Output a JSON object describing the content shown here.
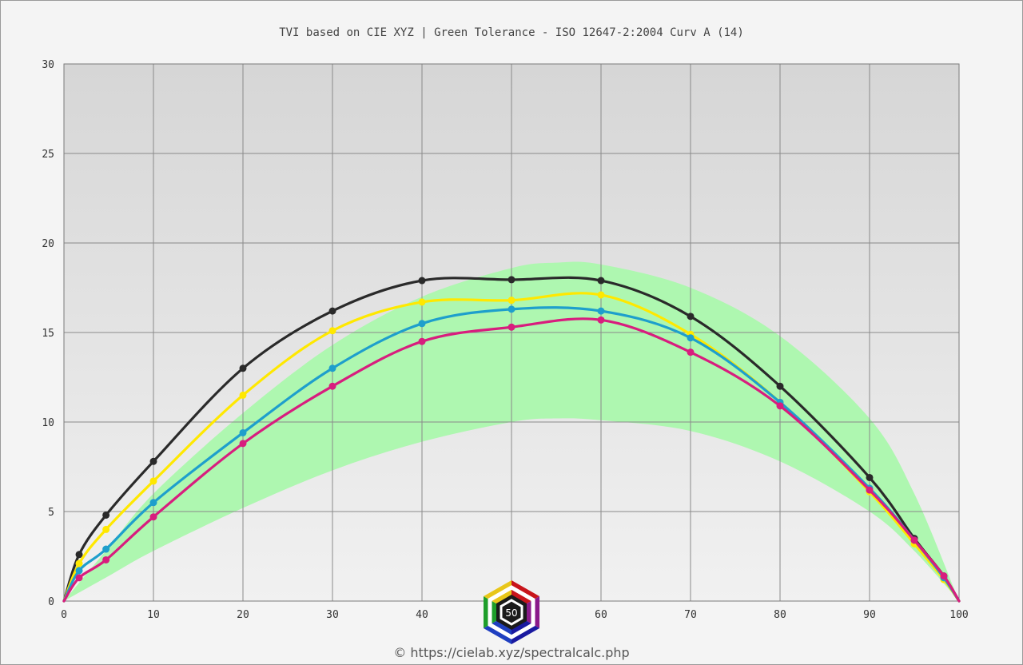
{
  "chart_data": {
    "type": "line",
    "title": "TVI based on CIE XYZ  |  Green Tolerance - ISO 12647-2:2004 Curv A (14)",
    "xlabel": "",
    "ylabel": "",
    "xlim": [
      0,
      100
    ],
    "ylim": [
      0,
      30
    ],
    "x_ticks": [
      0,
      10,
      20,
      30,
      40,
      50,
      60,
      70,
      80,
      90,
      100
    ],
    "y_ticks": [
      0,
      5,
      10,
      15,
      20,
      25,
      30
    ],
    "grid": true,
    "tolerance_band": {
      "x": [
        0,
        5,
        10,
        20,
        30,
        40,
        50,
        55,
        60,
        70,
        80,
        90,
        95,
        100
      ],
      "lower": [
        0,
        1.4,
        2.8,
        5.2,
        7.3,
        8.9,
        10.0,
        10.2,
        10.1,
        9.5,
        7.8,
        5.0,
        2.8,
        0
      ],
      "upper": [
        0,
        3.0,
        6.0,
        10.5,
        14.3,
        17.0,
        18.6,
        18.9,
        18.8,
        17.5,
        14.8,
        10.2,
        6.0,
        0
      ],
      "color": "#aef7b0"
    },
    "series": [
      {
        "color": "#2a2a2a",
        "x": [
          0,
          1.7,
          4.7,
          10,
          20,
          30,
          40,
          50,
          60,
          70,
          80,
          90,
          95,
          98.3,
          100
        ],
        "y": [
          0,
          2.6,
          4.8,
          7.8,
          13.0,
          16.2,
          17.9,
          17.95,
          17.9,
          15.9,
          12.0,
          6.9,
          3.5,
          1.4,
          0
        ]
      },
      {
        "color": "#ffe800",
        "x": [
          0,
          1.7,
          4.7,
          10,
          20,
          30,
          40,
          50,
          60,
          70,
          80,
          90,
          95,
          98.3,
          100
        ],
        "y": [
          0,
          2.1,
          4.0,
          6.7,
          11.5,
          15.1,
          16.7,
          16.8,
          17.1,
          14.9,
          11.1,
          6.1,
          3.2,
          1.2,
          0
        ]
      },
      {
        "color": "#1e9fcc",
        "x": [
          0,
          1.7,
          4.7,
          10,
          20,
          30,
          40,
          50,
          60,
          70,
          80,
          90,
          95,
          98.3,
          100
        ],
        "y": [
          0,
          1.7,
          2.9,
          5.5,
          9.4,
          13.0,
          15.5,
          16.3,
          16.2,
          14.7,
          11.1,
          6.3,
          3.4,
          1.3,
          0
        ]
      },
      {
        "color": "#d81d7e",
        "x": [
          0,
          1.7,
          4.7,
          10,
          20,
          30,
          40,
          50,
          60,
          70,
          80,
          90,
          95,
          98.3,
          100
        ],
        "y": [
          0,
          1.3,
          2.3,
          4.7,
          8.8,
          12.0,
          14.5,
          15.3,
          15.7,
          13.9,
          10.9,
          6.2,
          3.4,
          1.4,
          0
        ]
      }
    ]
  },
  "logo": {
    "text": "50",
    "name": "cielab-logo"
  },
  "credit": "© https://cielab.xyz/spectralcalc.php"
}
